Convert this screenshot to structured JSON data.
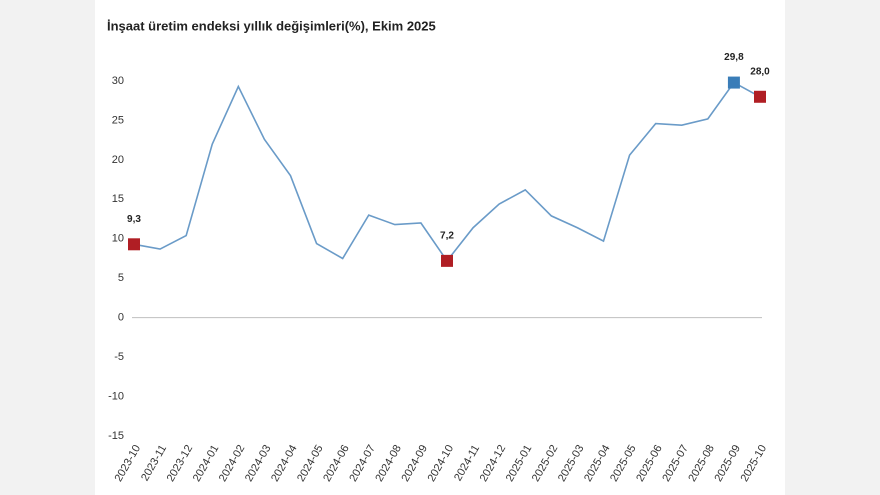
{
  "chart_data": {
    "type": "line",
    "title": "İnşaat üretim endeksi yıllık değişimleri(%), Ekim 2025",
    "categories": [
      "2023-10",
      "2023-11",
      "2023-12",
      "2024-01",
      "2024-02",
      "2024-03",
      "2024-04",
      "2024-05",
      "2024-06",
      "2024-07",
      "2024-08",
      "2024-09",
      "2024-10",
      "2024-11",
      "2024-12",
      "2025-01",
      "2025-02",
      "2025-03",
      "2025-04",
      "2025-05",
      "2025-06",
      "2025-07",
      "2025-08",
      "2025-09",
      "2025-10"
    ],
    "series": [
      {
        "color": "#6a9bc8",
        "values": [
          9.3,
          8.7,
          10.4,
          22.0,
          29.3,
          22.6,
          18.0,
          9.4,
          7.5,
          13.0,
          11.8,
          12.0,
          7.2,
          11.4,
          14.4,
          16.2,
          12.9,
          11.4,
          9.7,
          20.6,
          24.6,
          24.4,
          25.2,
          29.8,
          28.0
        ],
        "value_labels": [
          "9,3",
          null,
          null,
          null,
          null,
          null,
          null,
          null,
          null,
          null,
          null,
          null,
          "7,2",
          null,
          null,
          null,
          null,
          null,
          null,
          null,
          null,
          null,
          null,
          "29,8",
          "28,0"
        ],
        "marker_colors": [
          "#b01e24",
          null,
          null,
          null,
          null,
          null,
          null,
          null,
          null,
          null,
          null,
          null,
          "#b01e24",
          null,
          null,
          null,
          null,
          null,
          null,
          null,
          null,
          null,
          null,
          "#3a7db8",
          "#b01e24"
        ]
      }
    ],
    "ylim": [
      -15,
      30
    ],
    "yticks": [
      -15,
      -10,
      -5,
      0,
      5,
      10,
      15,
      20,
      25,
      30
    ],
    "grid": false
  }
}
